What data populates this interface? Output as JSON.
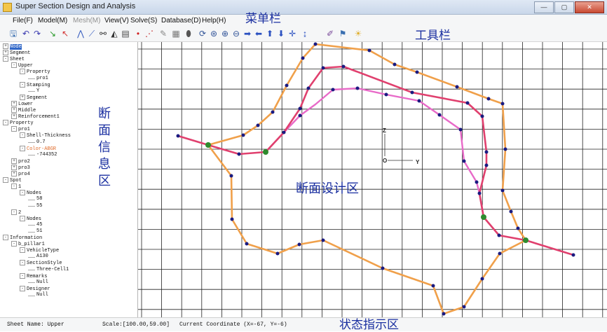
{
  "window": {
    "title": "Super Section Design and Analysis",
    "controls": [
      "—",
      "▢",
      "✕"
    ]
  },
  "menu": [
    {
      "label": "File(F)",
      "enabled": true
    },
    {
      "label": "Model(M)",
      "enabled": true
    },
    {
      "label": "Mesh(M)",
      "enabled": false
    },
    {
      "label": "View(V)",
      "enabled": true
    },
    {
      "label": "Solve(S)",
      "enabled": true
    },
    {
      "label": "Database(D)",
      "enabled": true
    },
    {
      "label": "Help(H)",
      "enabled": true
    }
  ],
  "toolbar_icons": [
    {
      "name": "save-icon",
      "glyph": "🖫",
      "color": "#3a6fb0"
    },
    {
      "name": "undo-icon",
      "glyph": "↶",
      "color": "#3a3ab0"
    },
    {
      "name": "redo-icon",
      "glyph": "↷",
      "color": "#3a3ab0"
    },
    {
      "name": "arrow-green-icon",
      "glyph": "↘",
      "color": "#2a9a2a"
    },
    {
      "name": "arrow-red-icon",
      "glyph": "↖",
      "color": "#d23030"
    },
    {
      "name": "polyline-icon",
      "glyph": "⋀",
      "color": "#3a5fc0"
    },
    {
      "name": "line-icon",
      "glyph": "⟋",
      "color": "#3a5fc0"
    },
    {
      "name": "node-link-icon",
      "glyph": "⚯",
      "color": "#333333"
    },
    {
      "name": "mirror-icon",
      "glyph": "◭",
      "color": "#333333"
    },
    {
      "name": "layer-icon",
      "glyph": "▤",
      "color": "#444444"
    },
    {
      "name": "point-icon",
      "glyph": "•",
      "color": "#d02020"
    },
    {
      "name": "dash-line-icon",
      "glyph": "⋰",
      "color": "#c02020"
    },
    {
      "name": "pen-icon",
      "glyph": "✎",
      "color": "#888888"
    },
    {
      "name": "grid-icon",
      "glyph": "▦",
      "color": "#777777"
    },
    {
      "name": "pin-icon",
      "glyph": "⬮",
      "color": "#555555"
    },
    {
      "name": "refresh-icon",
      "glyph": "⟳",
      "color": "#335599"
    },
    {
      "name": "zoom-fit-icon",
      "glyph": "⊛",
      "color": "#335599"
    },
    {
      "name": "zoom-in-icon",
      "glyph": "⊕",
      "color": "#335599"
    },
    {
      "name": "zoom-out-icon",
      "glyph": "⊖",
      "color": "#335599"
    },
    {
      "name": "pan-right-icon",
      "glyph": "➡",
      "color": "#2a50c0"
    },
    {
      "name": "pan-left-icon",
      "glyph": "⬅",
      "color": "#2a50c0"
    },
    {
      "name": "pan-up-icon",
      "glyph": "⬆",
      "color": "#2a50c0"
    },
    {
      "name": "pan-down-icon",
      "glyph": "⬇",
      "color": "#2a50c0"
    },
    {
      "name": "axis-icon",
      "glyph": "✛",
      "color": "#2a50c0"
    },
    {
      "name": "dim-icon",
      "glyph": "↨",
      "color": "#2a50c0"
    },
    {
      "name": "brush-icon",
      "glyph": "✐",
      "color": "#7a4a9a"
    },
    {
      "name": "flag-icon",
      "glyph": "⚑",
      "color": "#3a6fb0"
    },
    {
      "name": "sun-icon",
      "glyph": "☀",
      "color": "#e0b030"
    }
  ],
  "annotations": {
    "menubar": "菜单栏",
    "toolbar": "工具栏",
    "section_info": [
      "断",
      "面",
      "信",
      "息",
      "区"
    ],
    "design_area": "断面设计区",
    "status_area": "状态指示区"
  },
  "tree": [
    {
      "label": "Node",
      "level": 0,
      "exp": "+",
      "selected": true
    },
    {
      "label": "Segment",
      "level": 0,
      "exp": "+"
    },
    {
      "label": "Sheet",
      "level": 0,
      "exp": "-"
    },
    {
      "label": "Upper",
      "level": 1,
      "exp": "-"
    },
    {
      "label": "Property",
      "level": 2,
      "exp": "-"
    },
    {
      "label": "pro1",
      "level": 3,
      "exp": ""
    },
    {
      "label": "Stamping",
      "level": 2,
      "exp": "-"
    },
    {
      "label": "Y",
      "level": 3,
      "exp": ""
    },
    {
      "label": "Segment",
      "level": 2,
      "exp": "+"
    },
    {
      "label": "Lower",
      "level": 1,
      "exp": "+"
    },
    {
      "label": "Middle",
      "level": 1,
      "exp": "+"
    },
    {
      "label": "Reinforcement1",
      "level": 1,
      "exp": "+"
    },
    {
      "label": "Property",
      "level": 0,
      "exp": "-"
    },
    {
      "label": "pro1",
      "level": 1,
      "exp": "-"
    },
    {
      "label": "Shell-Thickness",
      "level": 2,
      "exp": "-"
    },
    {
      "label": "0.7",
      "level": 3,
      "exp": ""
    },
    {
      "label": "Color-ABGR",
      "level": 2,
      "exp": "-",
      "highlight": true
    },
    {
      "label": "-744352",
      "level": 3,
      "exp": ""
    },
    {
      "label": "pro2",
      "level": 1,
      "exp": "+"
    },
    {
      "label": "pro3",
      "level": 1,
      "exp": "+"
    },
    {
      "label": "pro4",
      "level": 1,
      "exp": "+"
    },
    {
      "label": "Spot",
      "level": 0,
      "exp": "-"
    },
    {
      "label": "1",
      "level": 1,
      "exp": "-"
    },
    {
      "label": "Nodes",
      "level": 2,
      "exp": "-"
    },
    {
      "label": "58",
      "level": 3,
      "exp": ""
    },
    {
      "label": "55",
      "level": 3,
      "exp": ""
    },
    {
      "label": "2",
      "level": 1,
      "exp": "-"
    },
    {
      "label": "Nodes",
      "level": 2,
      "exp": "-"
    },
    {
      "label": "45",
      "level": 3,
      "exp": ""
    },
    {
      "label": "51",
      "level": 3,
      "exp": ""
    },
    {
      "label": "Information",
      "level": 0,
      "exp": "-"
    },
    {
      "label": "b_pillar1",
      "level": 1,
      "exp": "-"
    },
    {
      "label": "VehicleType",
      "level": 2,
      "exp": "-"
    },
    {
      "label": "A130",
      "level": 3,
      "exp": ""
    },
    {
      "label": "SectionStyle",
      "level": 2,
      "exp": "-"
    },
    {
      "label": "Three-Cell1",
      "level": 3,
      "exp": ""
    },
    {
      "label": "Remarks",
      "level": 2,
      "exp": "-"
    },
    {
      "label": "Null",
      "level": 3,
      "exp": ""
    },
    {
      "label": "Designer",
      "level": 2,
      "exp": "-"
    },
    {
      "label": "Null",
      "level": 3,
      "exp": ""
    }
  ],
  "canvas": {
    "colors": {
      "grid": "#222222",
      "orange": "#f0a04a",
      "red": "#e0406e",
      "pink": "#e86ac8",
      "node": "#1a1a80",
      "spot": "#2e8b2e"
    },
    "axis": {
      "z_label": "Z",
      "y_label": "Y",
      "origin_label": "O"
    }
  },
  "status": {
    "sheet": "Sheet Name:  Upper",
    "scale": "Scale:[100.00,59.00]",
    "coord": "Current Coordinate (X=-67, Y=-6)"
  }
}
